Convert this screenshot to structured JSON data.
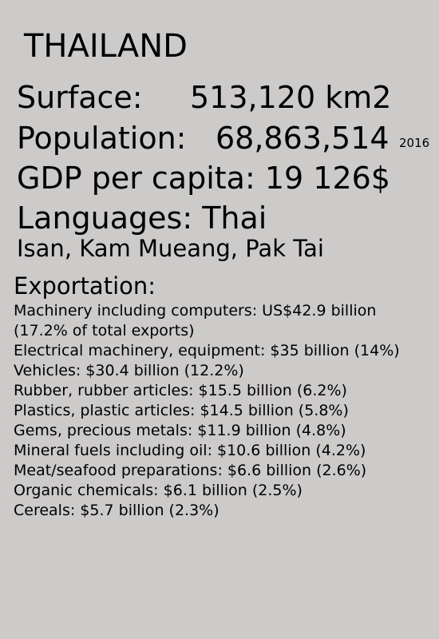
{
  "country": "THAILAND",
  "surface": {
    "label": "Surface:",
    "value": "513,120 km2"
  },
  "population": {
    "label": "Population:",
    "value": "68,863,514",
    "year": "2016"
  },
  "gdp": {
    "text": "GDP per capita: 19 126$"
  },
  "languages": {
    "text": "Languages: Thai",
    "dialects": "Isan, Kam Mueang, Pak Tai"
  },
  "exportation": {
    "title": "Exportation:",
    "items": [
      "Machinery including computers: US$42.9 billion (17.2% of total exports)",
      "Electrical machinery, equipment: $35 billion (14%)",
      "Vehicles: $30.4 billion (12.2%)",
      "Rubber, rubber articles: $15.5 billion (6.2%)",
      "Plastics, plastic articles: $14.5 billion (5.8%)",
      "Gems, precious metals: $11.9 billion (4.8%)",
      "Mineral fuels including oil: $10.6 billion (4.2%)",
      "Meat/seafood preparations: $6.6 billion (2.6%)",
      "Organic chemicals: $6.1 billion (2.5%)",
      "Cereals: $5.7 billion (2.3%)"
    ]
  }
}
